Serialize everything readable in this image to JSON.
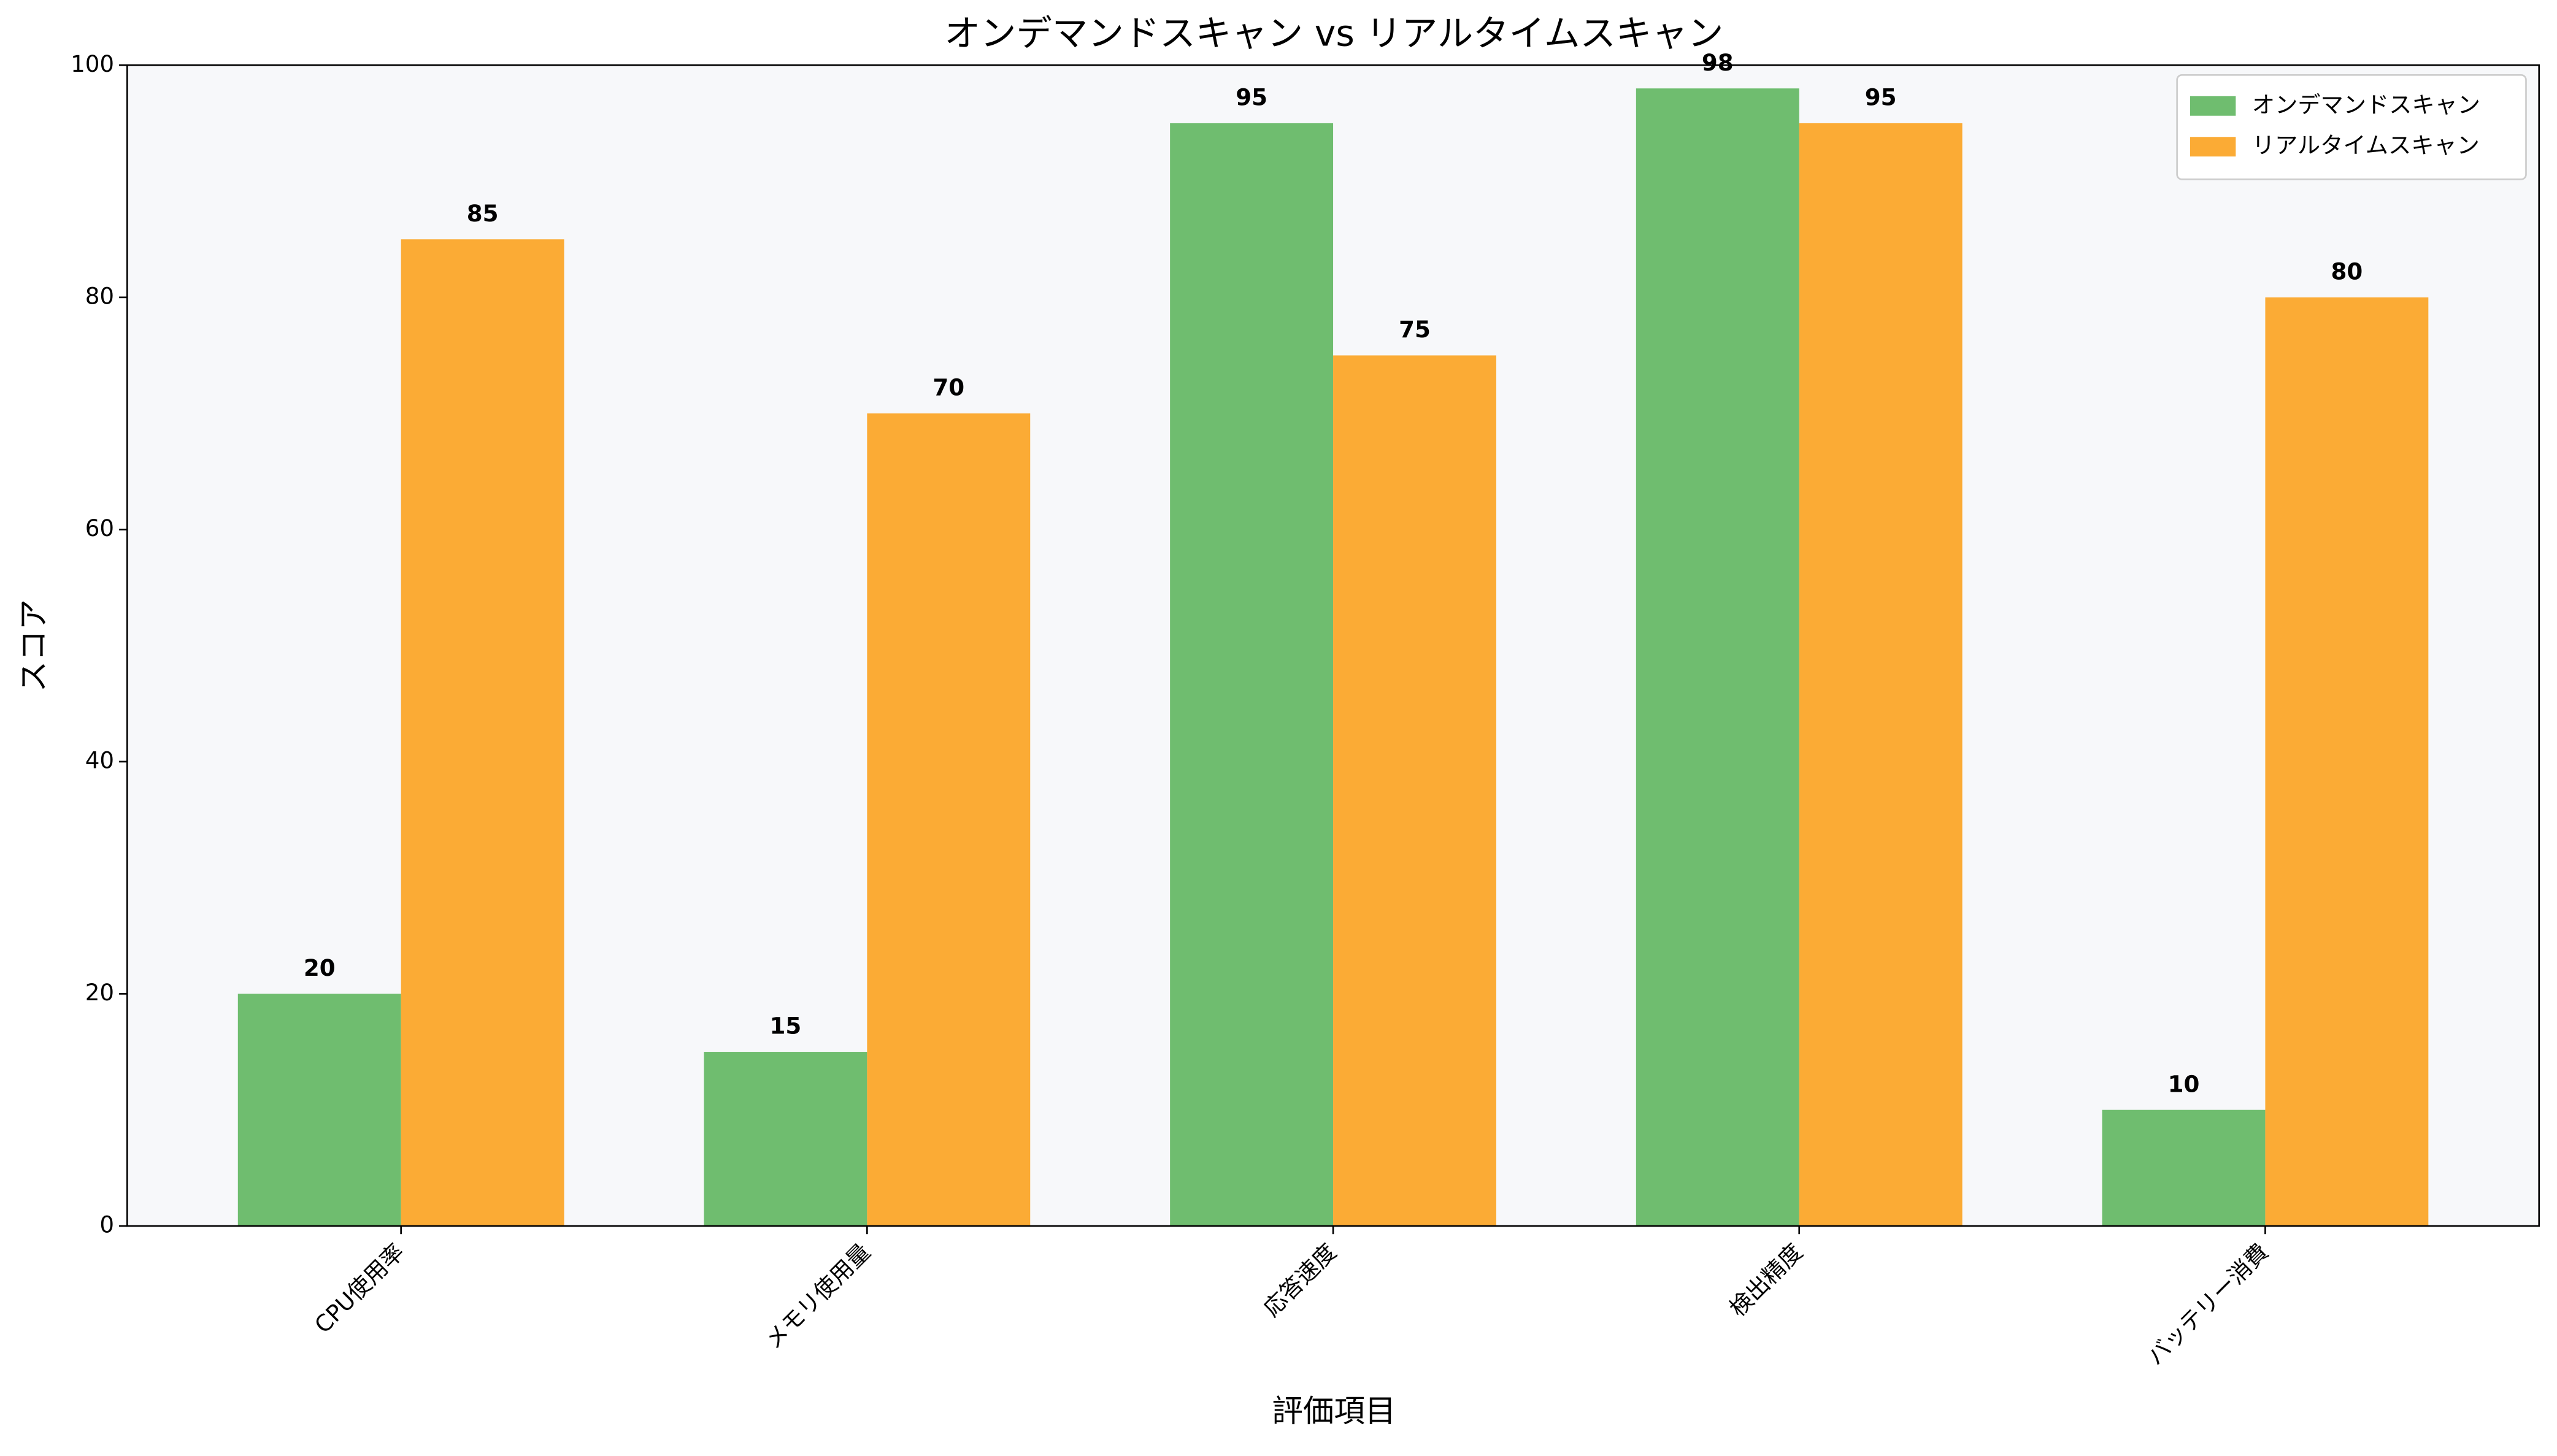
{
  "chart_data": {
    "type": "bar",
    "title": "オンデマンドスキャン vs リアルタイムスキャン",
    "x_label": "評価項目",
    "y_label": "スコア",
    "categories": [
      "CPU使用率",
      "メモリ使用量",
      "応答速度",
      "検出精度",
      "バッテリー消費"
    ],
    "series": [
      {
        "name": "オンデマンドスキャン",
        "color": "#6fbd6f",
        "values": [
          20,
          15,
          95,
          98,
          10
        ]
      },
      {
        "name": "リアルタイムスキャン",
        "color": "#fbab35",
        "values": [
          85,
          70,
          75,
          95,
          80
        ]
      }
    ],
    "ylim": [
      0,
      100
    ],
    "yticks": [
      0,
      20,
      40,
      60,
      80,
      100
    ],
    "legend": "upper-right"
  }
}
